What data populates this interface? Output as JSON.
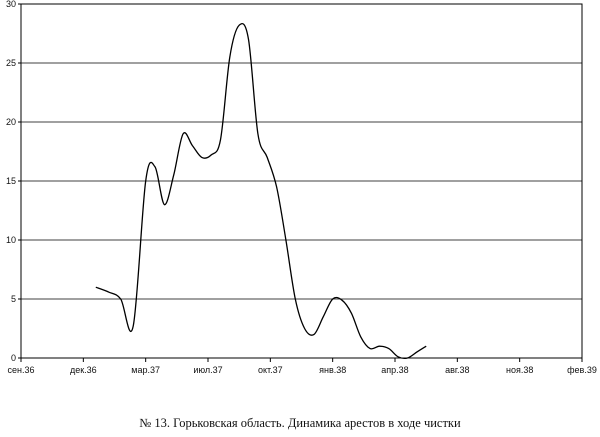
{
  "caption": "№ 13. Горьковская область. Динамика арестов в ходе чистки",
  "chart_data": {
    "type": "line",
    "title": "",
    "xlabel": "",
    "ylabel": "",
    "ylim": [
      0,
      30
    ],
    "yticks": [
      0,
      5,
      10,
      15,
      20,
      25,
      30
    ],
    "xtick_labels": [
      "сен.36",
      "дек.36",
      "мар.37",
      "июл.37",
      "окт.37",
      "янв.38",
      "апр.38",
      "авг.38",
      "ноя.38",
      "фев.39"
    ],
    "grid": "horizontal",
    "legend": "none",
    "series": [
      {
        "x": [
          1.2,
          1.4,
          1.6,
          1.8,
          2.0,
          2.15,
          2.3,
          2.45,
          2.6,
          2.75,
          2.9,
          3.05,
          3.2,
          3.35,
          3.5,
          3.65,
          3.8,
          3.95,
          4.1,
          4.25,
          4.4,
          4.55,
          4.7,
          4.85,
          5.0,
          5.15,
          5.3,
          5.45,
          5.6,
          5.75,
          5.9,
          6.05,
          6.2,
          6.35,
          6.5,
          6.65,
          6.8,
          6.95,
          7.1,
          7.2
        ],
        "y": [
          6.0,
          5.6,
          5.0,
          2.7,
          15.0,
          16.2,
          13.0,
          15.5,
          19.0,
          18.0,
          17.0,
          17.2,
          18.5,
          25.5,
          28.2,
          27.0,
          19.0,
          17.0,
          14.5,
          10.0,
          5.0,
          2.5,
          2.0,
          3.5,
          5.0,
          4.9,
          3.8,
          1.8,
          0.8,
          1.0,
          0.8,
          0.1,
          0.0,
          0.5,
          1.0,
          null,
          null,
          null,
          null,
          null
        ]
      }
    ]
  }
}
